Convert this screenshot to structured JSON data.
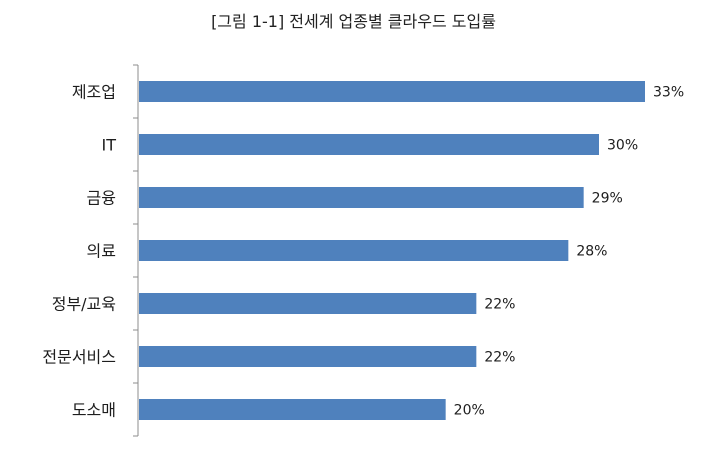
{
  "chart_data": {
    "type": "bar",
    "orientation": "horizontal",
    "title": "[그림 1-1] 전세계 업종별 클라우드 도입률",
    "xlabel": "",
    "ylabel": "",
    "categories": [
      "제조업",
      "IT",
      "금융",
      "의료",
      "정부/교육",
      "전문서비스",
      "도소매"
    ],
    "values": [
      33,
      30,
      29,
      28,
      22,
      22,
      20
    ],
    "value_labels": [
      "33%",
      "30%",
      "29%",
      "28%",
      "22%",
      "22%",
      "20%"
    ],
    "xlim": [
      0,
      36
    ],
    "grid": false,
    "legend": "none",
    "colors": {
      "bar": "#4f81bd",
      "axis": "#8c8c8c",
      "text": "#1d1d1d"
    }
  }
}
